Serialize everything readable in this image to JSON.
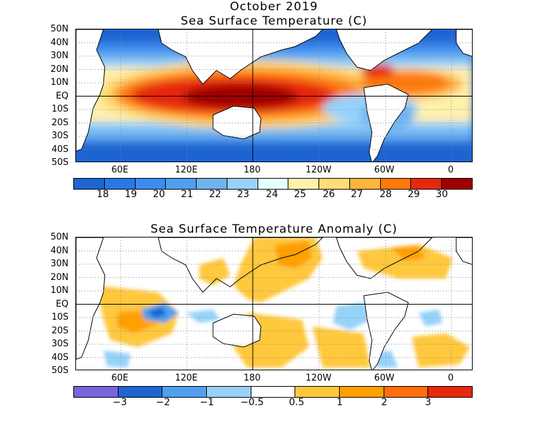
{
  "figure_title": "October 2019",
  "top_panel": {
    "title": "Sea Surface Temperature (C)",
    "lat_labels": [
      "50N",
      "40N",
      "30N",
      "20N",
      "10N",
      "EQ",
      "10S",
      "20S",
      "30S",
      "40S",
      "50S"
    ],
    "lon_labels": [
      "60E",
      "120E",
      "180",
      "120W",
      "60W",
      "0"
    ],
    "colorbar": {
      "colors": [
        "#1e64d2",
        "#2878e6",
        "#3c8cf0",
        "#50a0f0",
        "#6eb4f0",
        "#96d2fa",
        "#e6ffff",
        "#fff0aa",
        "#ffdc78",
        "#ffb43c",
        "#ff780a",
        "#e6280f",
        "#a00000"
      ],
      "labels": [
        "18",
        "19",
        "20",
        "21",
        "22",
        "23",
        "24",
        "25",
        "26",
        "27",
        "28",
        "29",
        "30"
      ]
    }
  },
  "bottom_panel": {
    "title": "Sea Surface Temperature Anomaly (C)",
    "lat_labels": [
      "50N",
      "40N",
      "30N",
      "20N",
      "10N",
      "EQ",
      "10S",
      "20S",
      "30S",
      "40S",
      "50S"
    ],
    "lon_labels": [
      "60E",
      "120E",
      "180",
      "120W",
      "60W",
      "0"
    ],
    "colorbar": {
      "colors": [
        "#7864dc",
        "#1e64d2",
        "#50a0f0",
        "#96d2fa",
        "#ffffff",
        "#ffc83c",
        "#ffa000",
        "#ff6e0a",
        "#e6280f"
      ],
      "labels": [
        "−3",
        "−2",
        "−1",
        "−0.5",
        "0.5",
        "1",
        "2",
        "3"
      ]
    }
  }
}
